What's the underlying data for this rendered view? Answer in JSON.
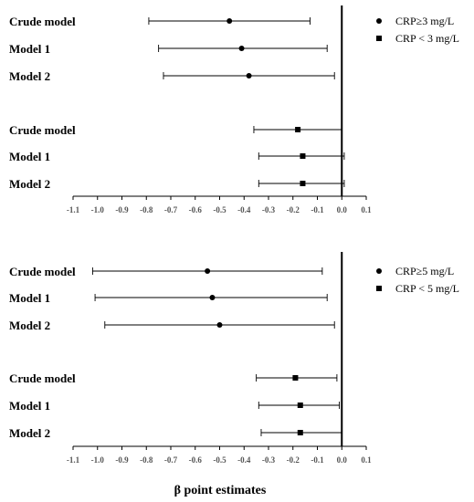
{
  "chart_data": [
    {
      "type": "forest",
      "panel": "top",
      "xlim": [
        -1.1,
        0.1
      ],
      "ticks": [
        -1.1,
        -1.0,
        -0.9,
        -0.8,
        -0.7,
        -0.6,
        -0.5,
        -0.4,
        -0.3,
        -0.2,
        -0.1,
        0.0,
        0.1
      ],
      "tick_labels": [
        "-1.1",
        "-1.0",
        "-0.9",
        "-0.8",
        "-0.7",
        "-0.6",
        "-0.5",
        "-0.4",
        "-0.3",
        "-0.2",
        "-0.1",
        "0.0",
        "0.1"
      ],
      "legend": [
        {
          "marker": "circle",
          "label": "CRP≥3 mg/L"
        },
        {
          "marker": "square",
          "label": "CRP < 3 mg/L"
        }
      ],
      "rows": [
        {
          "label": "Crude model",
          "group": "CRP≥3 mg/L",
          "marker": "circle",
          "estimate": -0.46,
          "lower": -0.79,
          "upper": -0.13
        },
        {
          "label": "Model 1",
          "group": "CRP≥3 mg/L",
          "marker": "circle",
          "estimate": -0.41,
          "lower": -0.75,
          "upper": -0.06
        },
        {
          "label": "Model 2",
          "group": "CRP≥3 mg/L",
          "marker": "circle",
          "estimate": -0.38,
          "lower": -0.73,
          "upper": -0.03
        },
        {
          "label": "Crude model",
          "group": "CRP < 3 mg/L",
          "marker": "square",
          "estimate": -0.18,
          "lower": -0.36,
          "upper": 0.0
        },
        {
          "label": "Model 1",
          "group": "CRP < 3 mg/L",
          "marker": "square",
          "estimate": -0.16,
          "lower": -0.34,
          "upper": 0.01
        },
        {
          "label": "Model 2",
          "group": "CRP < 3 mg/L",
          "marker": "square",
          "estimate": -0.16,
          "lower": -0.34,
          "upper": 0.01
        }
      ]
    },
    {
      "type": "forest",
      "panel": "bottom",
      "xlim": [
        -1.1,
        0.1
      ],
      "ticks": [
        -1.1,
        -1.0,
        -0.9,
        -0.8,
        -0.7,
        -0.6,
        -0.5,
        -0.4,
        -0.3,
        -0.2,
        -0.1,
        0.0,
        0.1
      ],
      "tick_labels": [
        "-1.1",
        "-1.0",
        "-0.9",
        "-0.8",
        "-0.7",
        "-0.6",
        "-0.5",
        "-0.4",
        "-0.3",
        "-0.2",
        "-0.1",
        "0.0",
        "0.1"
      ],
      "xlabel": "β point estimates",
      "legend": [
        {
          "marker": "circle",
          "label": "CRP≥5 mg/L"
        },
        {
          "marker": "square",
          "label": "CRP < 5 mg/L"
        }
      ],
      "rows": [
        {
          "label": "Crude model",
          "group": "CRP≥5 mg/L",
          "marker": "circle",
          "estimate": -0.55,
          "lower": -1.02,
          "upper": -0.08
        },
        {
          "label": "Model 1",
          "group": "CRP≥5 mg/L",
          "marker": "circle",
          "estimate": -0.53,
          "lower": -1.01,
          "upper": -0.06
        },
        {
          "label": "Model 2",
          "group": "CRP≥5 mg/L",
          "marker": "circle",
          "estimate": -0.5,
          "lower": -0.97,
          "upper": -0.03
        },
        {
          "label": "Crude model",
          "group": "CRP < 5 mg/L",
          "marker": "square",
          "estimate": -0.19,
          "lower": -0.35,
          "upper": -0.02
        },
        {
          "label": "Model 1",
          "group": "CRP < 5 mg/L",
          "marker": "square",
          "estimate": -0.17,
          "lower": -0.34,
          "upper": -0.01
        },
        {
          "label": "Model 2",
          "group": "CRP < 5 mg/L",
          "marker": "square",
          "estimate": -0.17,
          "lower": -0.33,
          "upper": 0.0
        }
      ]
    }
  ]
}
